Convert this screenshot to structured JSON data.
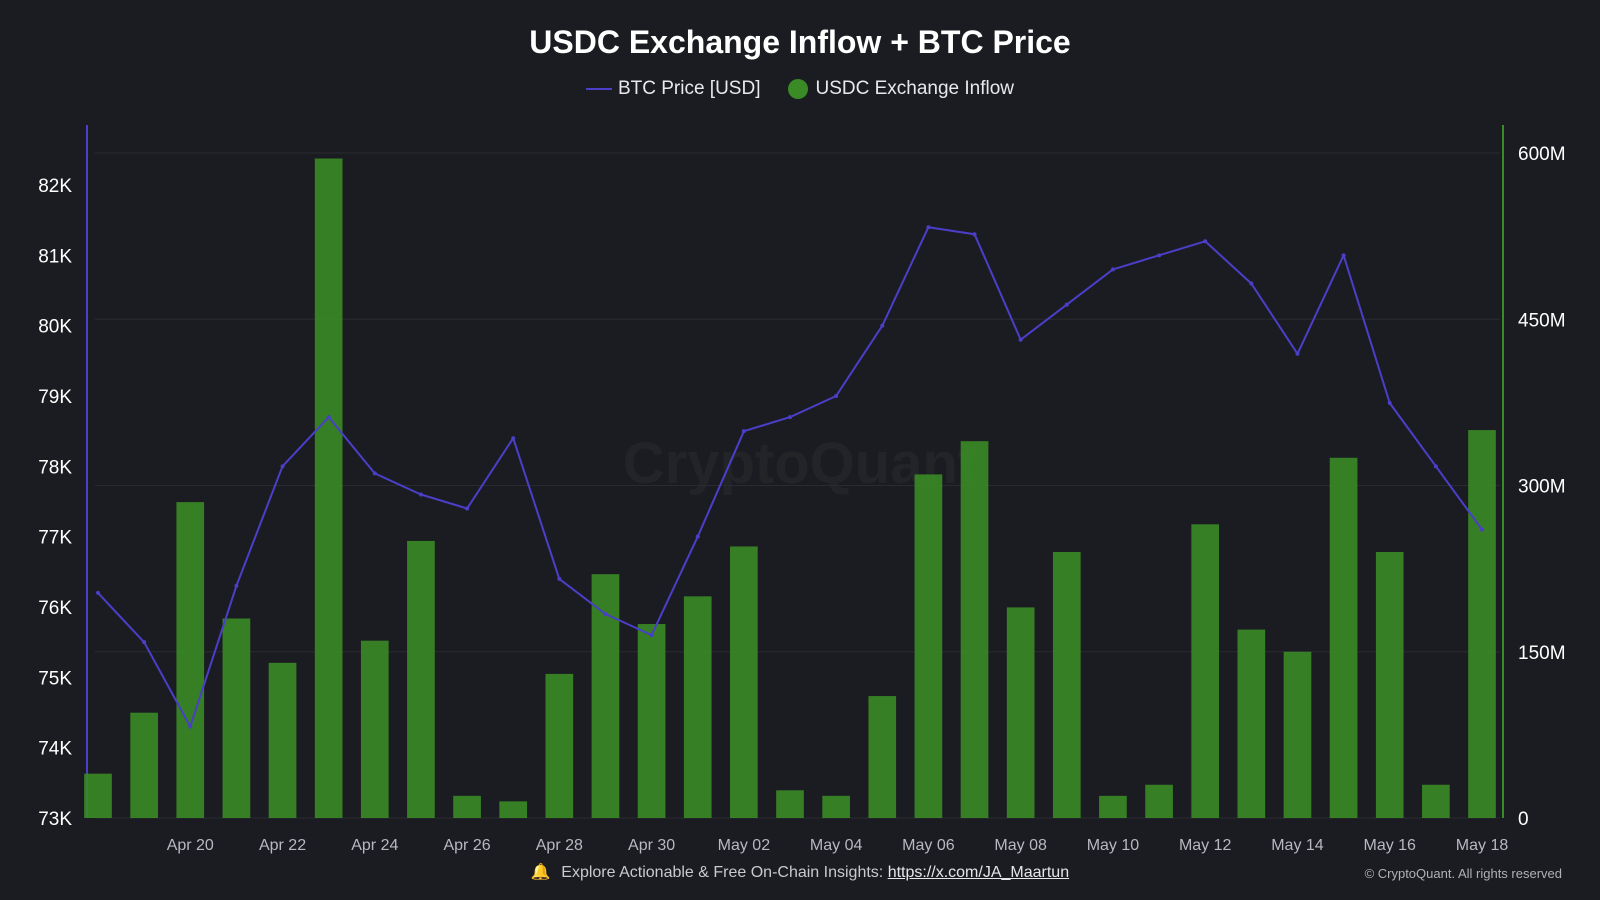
{
  "title": "USDC Exchange Inflow + BTC Price",
  "legend": {
    "price_label": "BTC Price [USD]",
    "inflow_label": "USDC Exchange Inflow"
  },
  "watermark": "CryptoQuant",
  "footer": {
    "icon": "bell-icon",
    "text": "Explore Actionable & Free On-Chain Insights:",
    "link": "https://x.com/JA_Maartun",
    "copyright": "© CryptoQuant. All rights reserved"
  },
  "colors": {
    "background": "#1b1c21",
    "price": "#4b3fc9",
    "inflow": "#3a8b26",
    "grid": "#2a2b31"
  },
  "chart_data": {
    "type": "bar+line",
    "x_range": [
      "2025-04-18",
      "2025-05-18"
    ],
    "x_ticks": [
      "Apr 20",
      "Apr 22",
      "Apr 24",
      "Apr 26",
      "Apr 28",
      "Apr 30",
      "May 02",
      "May 04",
      "May 06",
      "May 08",
      "May 10",
      "May 12",
      "May 14",
      "May 16",
      "May 18"
    ],
    "y_left": {
      "label": "BTC Price [USD]",
      "range": [
        73000,
        82600
      ],
      "ticks": [
        "73K",
        "74K",
        "75K",
        "76K",
        "77K",
        "78K",
        "79K",
        "80K",
        "81K",
        "82K"
      ]
    },
    "y_right": {
      "label": "USDC Exchange Inflow",
      "range": [
        0,
        600000000
      ],
      "ticks": [
        "0",
        "150M",
        "300M",
        "450M",
        "600M"
      ]
    },
    "grid": true,
    "legend_position": "top-center",
    "series": [
      {
        "name": "BTC Price [USD]",
        "type": "line",
        "axis": "left",
        "points": [
          [
            "Apr 18",
            76200
          ],
          [
            "Apr 19",
            75500
          ],
          [
            "Apr 20",
            74300
          ],
          [
            "Apr 21",
            76300
          ],
          [
            "Apr 22",
            78000
          ],
          [
            "Apr 23",
            78700
          ],
          [
            "Apr 24",
            77900
          ],
          [
            "Apr 25",
            77600
          ],
          [
            "Apr 26",
            77400
          ],
          [
            "Apr 27",
            78400
          ],
          [
            "Apr 28",
            76400
          ],
          [
            "Apr 29",
            75900
          ],
          [
            "Apr 30",
            75600
          ],
          [
            "May 01",
            77000
          ],
          [
            "May 02",
            78500
          ],
          [
            "May 03",
            78700
          ],
          [
            "May 04",
            79000
          ],
          [
            "May 05",
            80000
          ],
          [
            "May 06",
            81400
          ],
          [
            "May 07",
            81300
          ],
          [
            "May 08",
            79800
          ],
          [
            "May 09",
            80300
          ],
          [
            "May 10",
            80800
          ],
          [
            "May 11",
            81000
          ],
          [
            "May 12",
            81200
          ],
          [
            "May 13",
            80600
          ],
          [
            "May 14",
            79600
          ],
          [
            "May 15",
            81000
          ],
          [
            "May 16",
            78900
          ],
          [
            "May 17",
            78000
          ],
          [
            "May 18",
            77100
          ]
        ]
      },
      {
        "name": "USDC Exchange Inflow",
        "type": "bar",
        "axis": "right",
        "points": [
          [
            "Apr 18",
            40000000
          ],
          [
            "Apr 19",
            95000000
          ],
          [
            "Apr 20",
            285000000
          ],
          [
            "Apr 21",
            180000000
          ],
          [
            "Apr 22",
            140000000
          ],
          [
            "Apr 23",
            595000000
          ],
          [
            "Apr 24",
            160000000
          ],
          [
            "Apr 25",
            250000000
          ],
          [
            "Apr 26",
            20000000
          ],
          [
            "Apr 27",
            15000000
          ],
          [
            "Apr 28",
            130000000
          ],
          [
            "Apr 29",
            220000000
          ],
          [
            "Apr 30",
            175000000
          ],
          [
            "May 01",
            200000000
          ],
          [
            "May 02",
            245000000
          ],
          [
            "May 03",
            25000000
          ],
          [
            "May 04",
            20000000
          ],
          [
            "May 05",
            110000000
          ],
          [
            "May 06",
            310000000
          ],
          [
            "May 07",
            340000000
          ],
          [
            "May 08",
            190000000
          ],
          [
            "May 09",
            240000000
          ],
          [
            "May 10",
            20000000
          ],
          [
            "May 11",
            30000000
          ],
          [
            "May 12",
            265000000
          ],
          [
            "May 13",
            170000000
          ],
          [
            "May 14",
            150000000
          ],
          [
            "May 15",
            325000000
          ],
          [
            "May 16",
            240000000
          ],
          [
            "May 17",
            30000000
          ],
          [
            "May 18",
            350000000
          ]
        ]
      }
    ]
  }
}
